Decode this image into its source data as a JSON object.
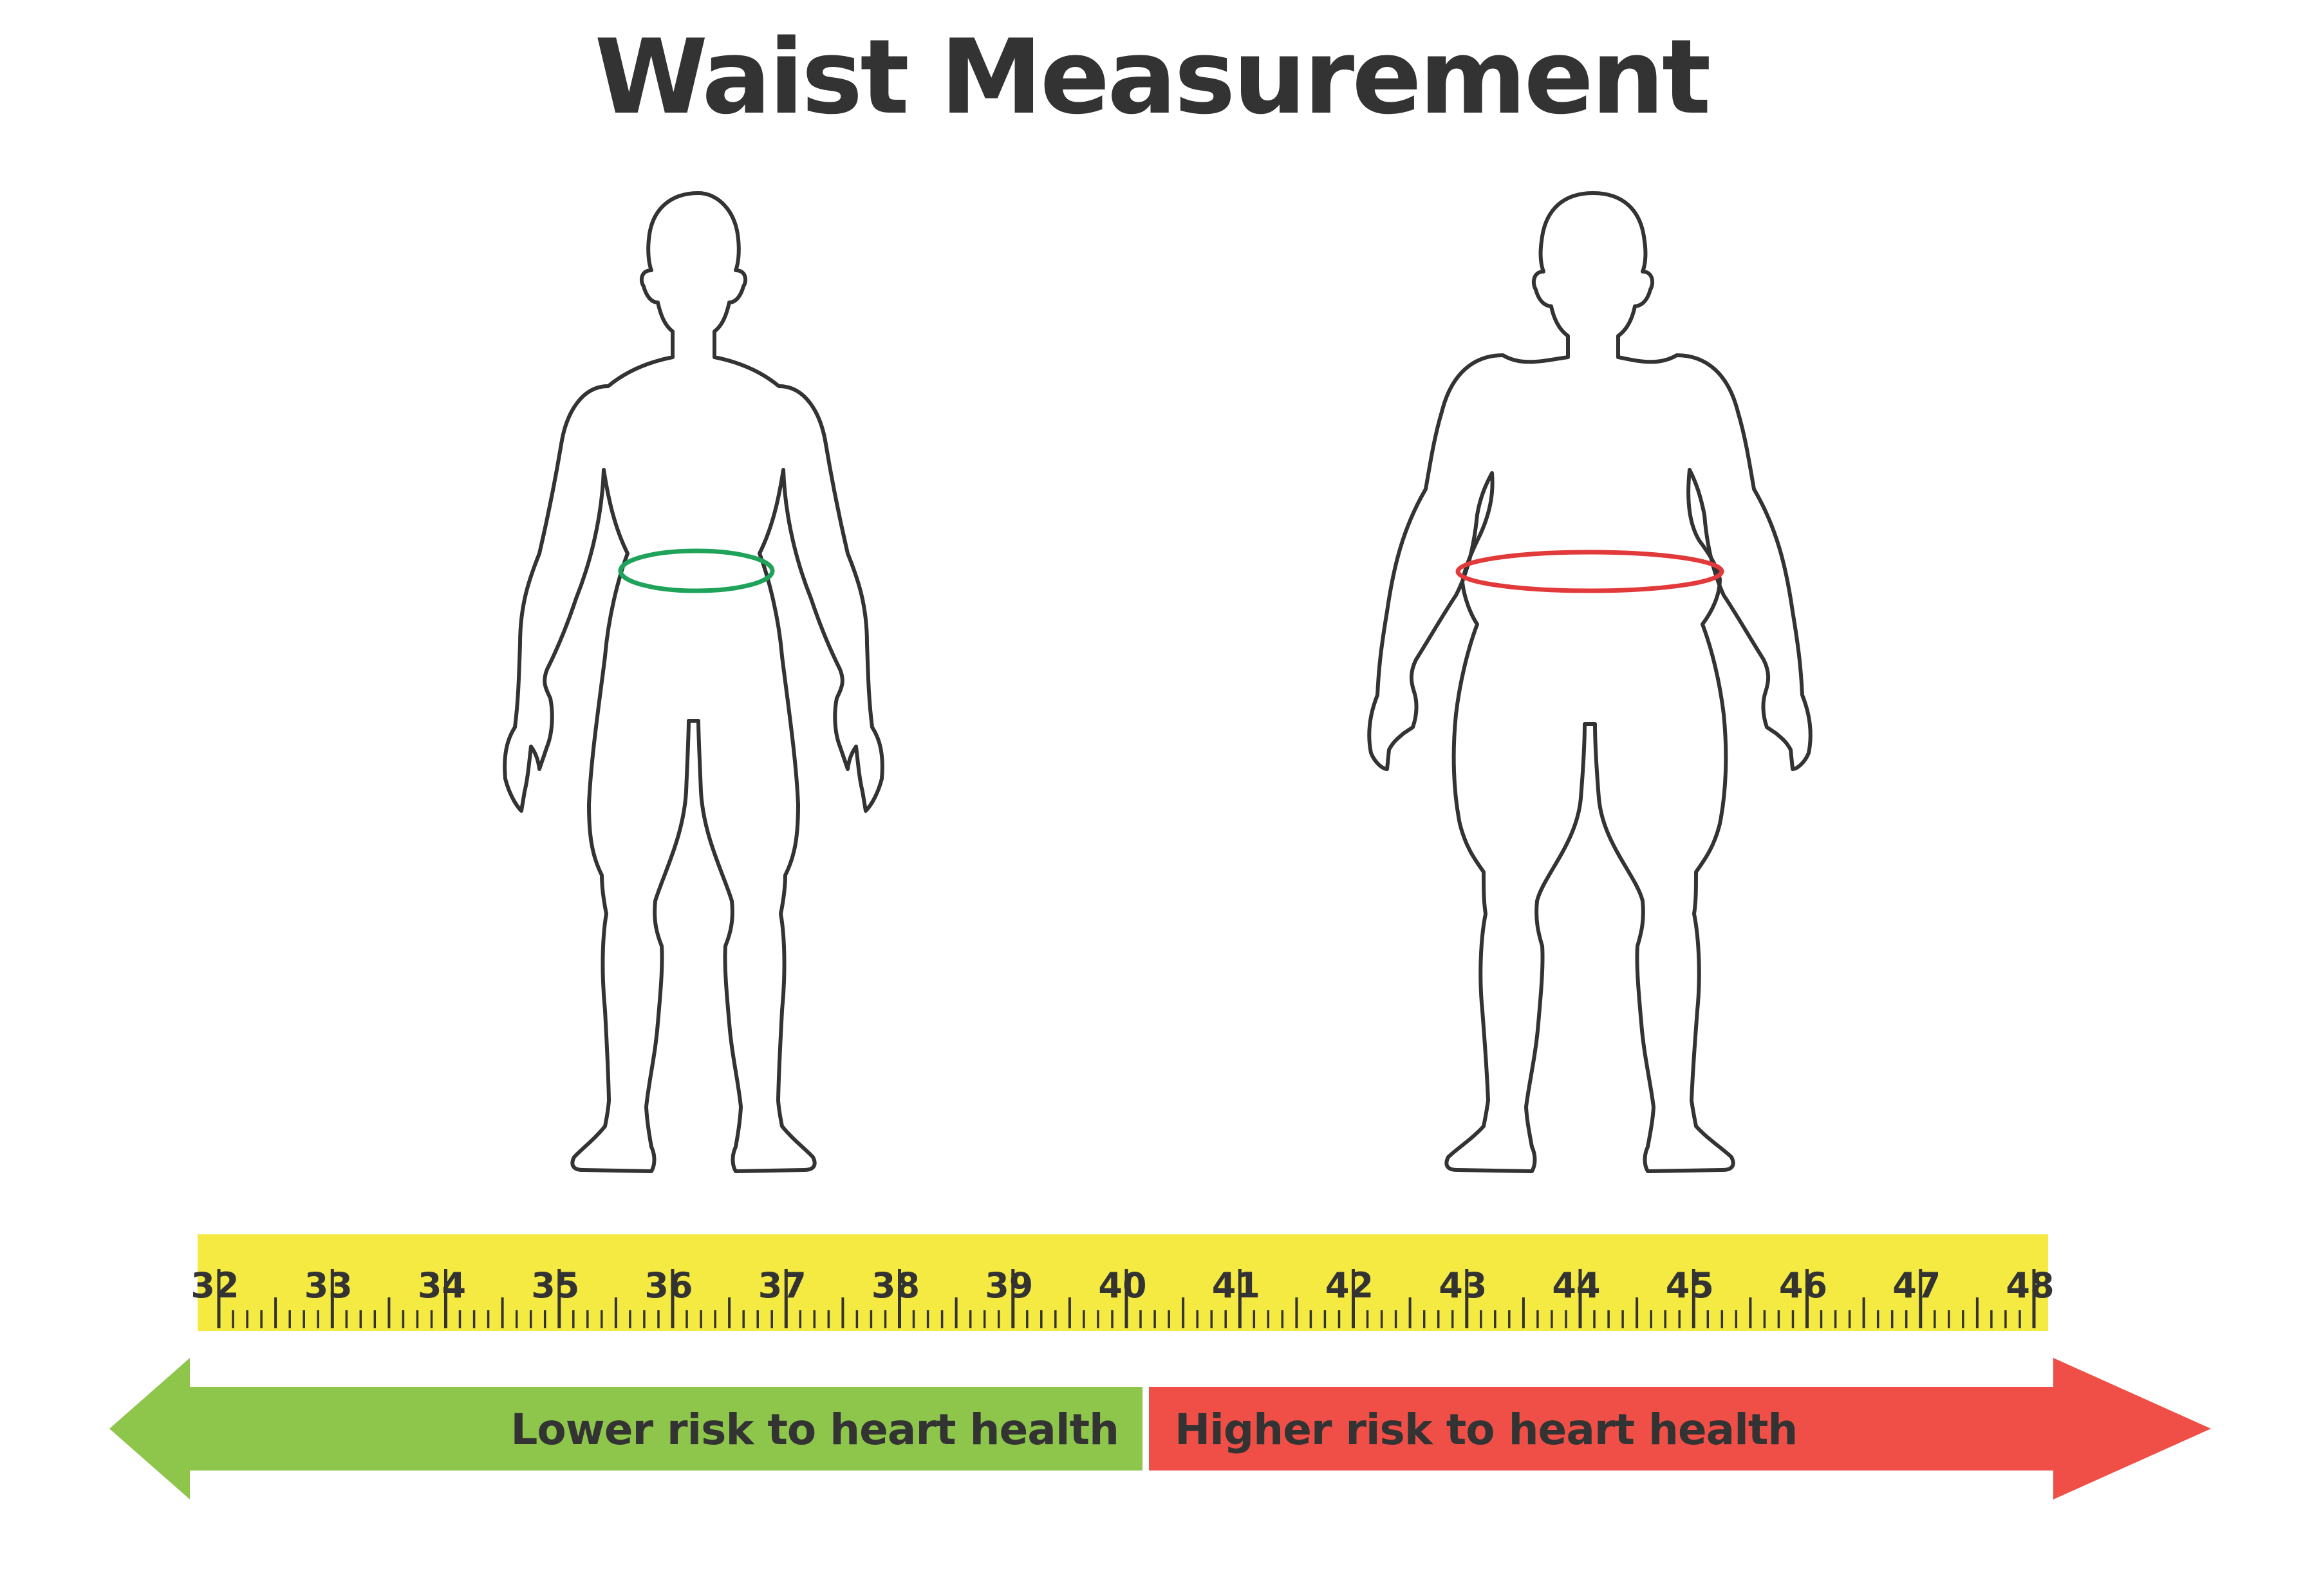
{
  "title": "Waist Measurement",
  "colors": {
    "text": "#333333",
    "tape": "#f5ea42",
    "normal_waist": "#1fa35a",
    "large_waist": "#e23a3a",
    "lower_risk": "#8dc64b",
    "higher_risk": "#ef4f46"
  },
  "figures": {
    "normal": {
      "waist_ring_color": "green",
      "icon": "slim-body-icon"
    },
    "large": {
      "waist_ring_color": "red",
      "icon": "obese-body-icon"
    }
  },
  "ruler": {
    "min": 32,
    "max": 48,
    "labels": [
      "32",
      "33",
      "34",
      "35",
      "36",
      "37",
      "38",
      "39",
      "40",
      "41",
      "42",
      "43",
      "44",
      "45",
      "46",
      "47",
      "48"
    ],
    "minor_ticks_per_unit": 8,
    "threshold": 40
  },
  "risk_arrows": {
    "lower": {
      "label": "Lower risk to heart health",
      "direction": "left",
      "range": [
        32,
        40
      ]
    },
    "higher": {
      "label": "Higher risk to heart health",
      "direction": "right",
      "range": [
        40,
        48
      ]
    }
  }
}
